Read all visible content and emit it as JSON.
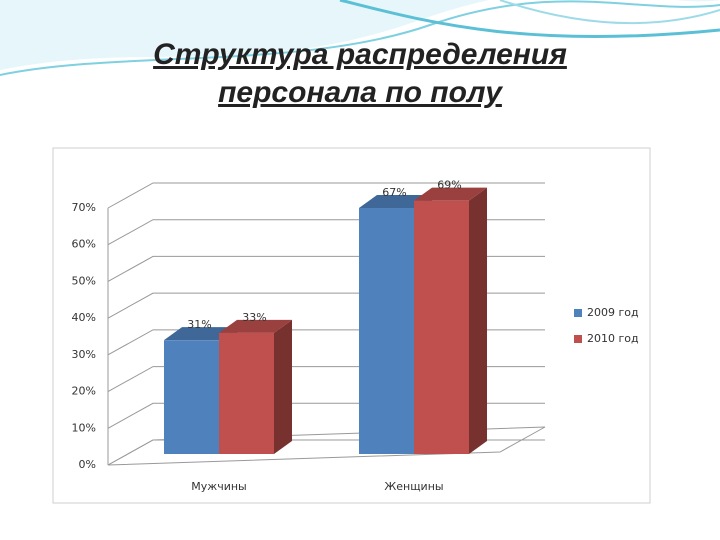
{
  "chart_data": {
    "type": "bar3d",
    "title": "Структура распределения персонала по полу",
    "categories": [
      "Мужчины",
      "Женщины"
    ],
    "series": [
      {
        "name": "2009 год",
        "color": "#4f81bd",
        "values": [
          31,
          67
        ],
        "value_labels": [
          "31%",
          "67%"
        ]
      },
      {
        "name": "2010 год",
        "color": "#c0504d",
        "values": [
          33,
          69
        ],
        "value_labels": [
          "33%",
          "69%"
        ]
      }
    ],
    "ylim": [
      0,
      70
    ],
    "yticks": [
      {
        "value": 0,
        "label": "0%"
      },
      {
        "value": 10,
        "label": "10%"
      },
      {
        "value": 20,
        "label": "20%"
      },
      {
        "value": 30,
        "label": "30%"
      },
      {
        "value": 40,
        "label": "40%"
      },
      {
        "value": 50,
        "label": "50%"
      },
      {
        "value": 60,
        "label": "60%"
      },
      {
        "value": 70,
        "label": "70%"
      }
    ],
    "grid": true,
    "legend": "right"
  }
}
